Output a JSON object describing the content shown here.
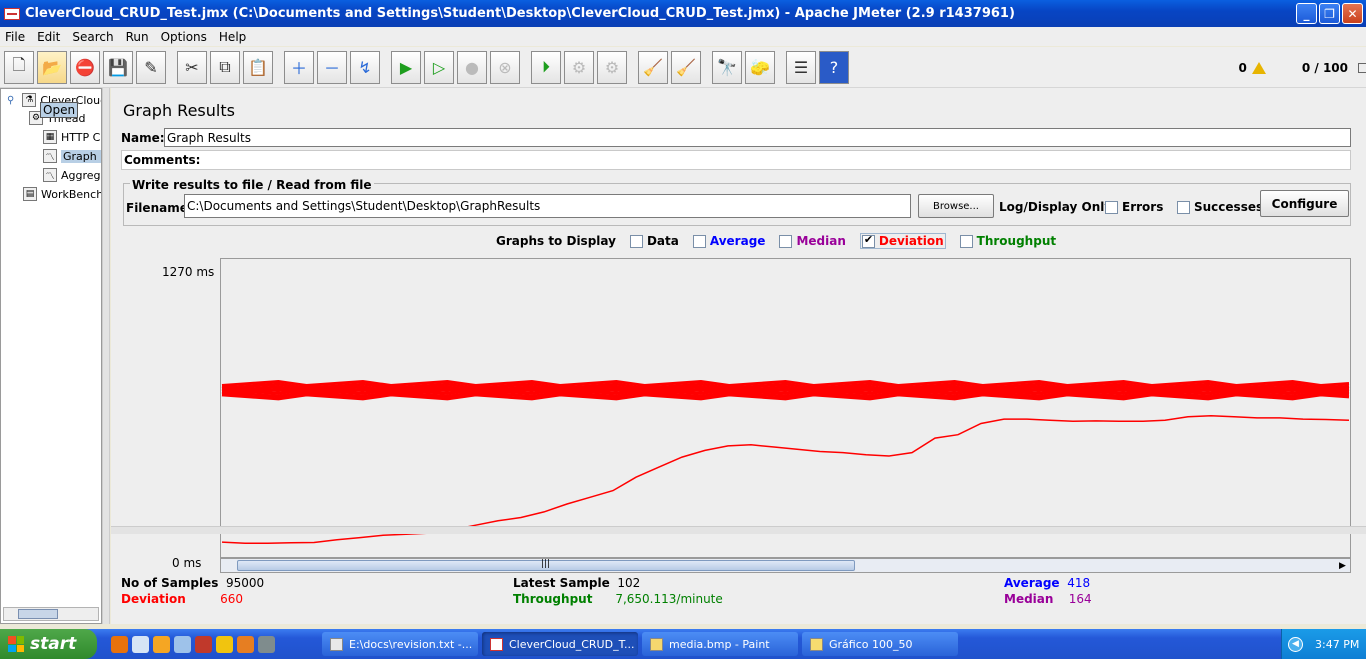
{
  "window": {
    "title": "CleverCloud_CRUD_Test.jmx (C:\\Documents and Settings\\Student\\Desktop\\CleverCloud_CRUD_Test.jmx) - Apache JMeter (2.9 r1437961)",
    "min": "_",
    "max": "❐",
    "close": "✕"
  },
  "menu": [
    "File",
    "Edit",
    "Search",
    "Run",
    "Options",
    "Help"
  ],
  "toolbar": {
    "error_count": "0",
    "threads": "0 / 100"
  },
  "tree": {
    "tooltip": "Open",
    "items": [
      {
        "label": "CleverCloud"
      },
      {
        "label": "Thread"
      },
      {
        "label": "HTTP C"
      },
      {
        "label": "Graph R"
      },
      {
        "label": "Aggreg"
      },
      {
        "label": "WorkBench"
      }
    ]
  },
  "panel": {
    "title": "Graph Results",
    "name_label": "Name:",
    "name_value": "Graph Results",
    "comments_label": "Comments:",
    "file_legend": "Write results to file / Read from file",
    "filename_label": "Filename",
    "filename_value": "C:\\Documents and Settings\\Student\\Desktop\\GraphResults",
    "browse": "Browse...",
    "log_display": "Log/Display Only:",
    "errors": "Errors",
    "successes": "Successes",
    "configure": "Configure"
  },
  "graphs_display": {
    "label": "Graphs to Display",
    "options": [
      {
        "label": "Data",
        "checked": false,
        "color": "#000000"
      },
      {
        "label": "Average",
        "checked": false,
        "color": "#0000ff"
      },
      {
        "label": "Median",
        "checked": false,
        "color": "#990099"
      },
      {
        "label": "Deviation",
        "checked": true,
        "color": "#ff0000"
      },
      {
        "label": "Throughput",
        "checked": false,
        "color": "#008000"
      }
    ]
  },
  "chart_data": {
    "type": "line",
    "y_max_label": "1270 ms",
    "y_min_label": "0 ms",
    "ylim": [
      0,
      1270
    ],
    "series": [
      {
        "color": "#ff0000",
        "values": [
          40,
          35,
          35,
          37,
          38,
          50,
          60,
          70,
          75,
          80,
          95,
          115,
          135,
          150,
          175,
          210,
          240,
          270,
          330,
          375,
          420,
          450,
          470,
          475,
          465,
          455,
          445,
          440,
          430,
          425,
          440,
          505,
          520,
          570,
          590,
          590,
          585,
          580,
          582,
          580,
          580,
          585,
          600,
          605,
          600,
          595,
          595,
          590,
          588,
          585
        ]
      }
    ]
  },
  "stats": {
    "samples_label": "No of Samples",
    "samples_value": "95000",
    "latest_label": "Latest Sample",
    "latest_value": "102",
    "average_label": "Average",
    "average_value": "418",
    "deviation_label": "Deviation",
    "deviation_value": "660",
    "throughput_label": "Throughput",
    "throughput_value": "7,650.113/minute",
    "median_label": "Median",
    "median_value": "164"
  },
  "taskbar": {
    "start": "start",
    "tasks": [
      {
        "label": "E:\\docs\\revision.txt -..."
      },
      {
        "label": "CleverCloud_CRUD_T..."
      },
      {
        "label": "media.bmp - Paint"
      },
      {
        "label": "Gráfico 100_50"
      }
    ],
    "clock": "3:47 PM"
  }
}
